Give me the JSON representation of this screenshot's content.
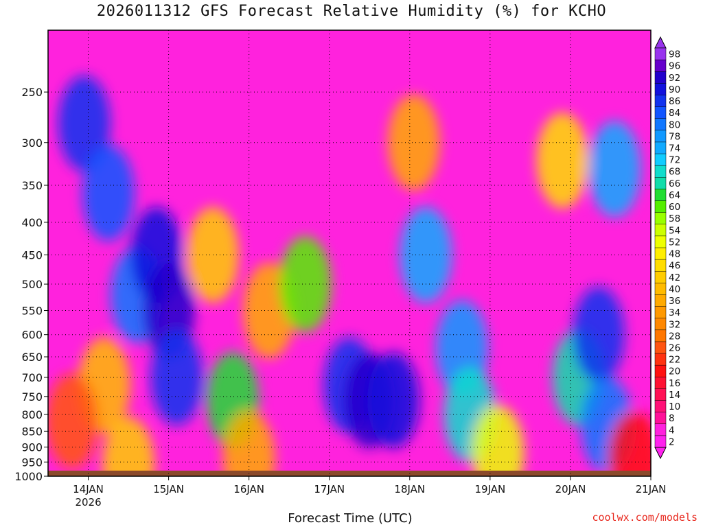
{
  "chart_data": {
    "type": "heatmap",
    "title": "2026011312 GFS Forecast Relative Humidity (%) for KCHO",
    "xlabel": "Forecast Time (UTC)",
    "ylabel": "",
    "x_ticks": [
      {
        "label": "14JAN",
        "sub": "2026",
        "day": 1
      },
      {
        "label": "15JAN",
        "sub": "",
        "day": 2
      },
      {
        "label": "16JAN",
        "sub": "",
        "day": 3
      },
      {
        "label": "17JAN",
        "sub": "",
        "day": 4
      },
      {
        "label": "18JAN",
        "sub": "",
        "day": 5
      },
      {
        "label": "19JAN",
        "sub": "",
        "day": 6
      },
      {
        "label": "20JAN",
        "sub": "",
        "day": 7
      },
      {
        "label": "21JAN",
        "sub": "",
        "day": 8
      }
    ],
    "xlim_days": [
      0.5,
      8.0
    ],
    "y_ticks": [
      250,
      300,
      350,
      400,
      450,
      500,
      550,
      600,
      650,
      700,
      750,
      800,
      850,
      900,
      950,
      1000
    ],
    "ylim_hpa": [
      200,
      1000
    ],
    "y_scale": "log-pressure",
    "grid": true,
    "colorbar": {
      "labels": [
        "2",
        "4",
        "8",
        "10",
        "14",
        "16",
        "20",
        "22",
        "26",
        "28",
        "32",
        "34",
        "36",
        "40",
        "42",
        "46",
        "48",
        "52",
        "54",
        "58",
        "60",
        "64",
        "66",
        "68",
        "72",
        "74",
        "78",
        "80",
        "84",
        "86",
        "90",
        "92",
        "96",
        "98"
      ],
      "colors": [
        "#ff22ee",
        "#ff22dd",
        "#ff1199",
        "#ff1177",
        "#ff1155",
        "#ff1133",
        "#ff1111",
        "#ff3311",
        "#ff5511",
        "#ff7700",
        "#ff8800",
        "#ff9900",
        "#ffaa00",
        "#ffbb00",
        "#ffcc00",
        "#ffdd00",
        "#ffee00",
        "#eeff00",
        "#ccff00",
        "#99ff00",
        "#55ee00",
        "#22dd33",
        "#11ddaa",
        "#11ddcc",
        "#11ccff",
        "#11aaff",
        "#1199ff",
        "#1177ff",
        "#1155ff",
        "#1133ee",
        "#1111dd",
        "#2200cc",
        "#6600cc",
        "#9933ee"
      ]
    },
    "series": [
      {
        "name": "",
        "points": [
          {
            "day": 0.95,
            "hpa": 280,
            "rh": 88
          },
          {
            "day": 1.25,
            "hpa": 360,
            "rh": 84
          },
          {
            "day": 1.6,
            "hpa": 520,
            "rh": 82
          },
          {
            "day": 1.85,
            "hpa": 450,
            "rh": 90
          },
          {
            "day": 2.0,
            "hpa": 550,
            "rh": 92
          },
          {
            "day": 2.1,
            "hpa": 700,
            "rh": 88
          },
          {
            "day": 1.2,
            "hpa": 720,
            "rh": 40
          },
          {
            "day": 0.8,
            "hpa": 820,
            "rh": 26
          },
          {
            "day": 2.55,
            "hpa": 450,
            "rh": 42
          },
          {
            "day": 2.8,
            "hpa": 760,
            "rh": 64
          },
          {
            "day": 3.25,
            "hpa": 550,
            "rh": 36
          },
          {
            "day": 3.7,
            "hpa": 500,
            "rh": 62
          },
          {
            "day": 4.25,
            "hpa": 720,
            "rh": 86
          },
          {
            "day": 4.5,
            "hpa": 760,
            "rh": 92
          },
          {
            "day": 4.8,
            "hpa": 760,
            "rh": 90
          },
          {
            "day": 5.2,
            "hpa": 450,
            "rh": 74
          },
          {
            "day": 5.65,
            "hpa": 630,
            "rh": 78
          },
          {
            "day": 5.75,
            "hpa": 800,
            "rh": 70
          },
          {
            "day": 5.05,
            "hpa": 300,
            "rh": 38
          },
          {
            "day": 6.9,
            "hpa": 320,
            "rh": 46
          },
          {
            "day": 7.1,
            "hpa": 700,
            "rh": 66
          },
          {
            "day": 7.35,
            "hpa": 600,
            "rh": 86
          },
          {
            "day": 7.55,
            "hpa": 330,
            "rh": 76
          },
          {
            "day": 7.45,
            "hpa": 830,
            "rh": 80
          },
          {
            "day": 6.1,
            "hpa": 920,
            "rh": 52
          },
          {
            "day": 3.0,
            "hpa": 940,
            "rh": 36
          },
          {
            "day": 1.5,
            "hpa": 960,
            "rh": 42
          },
          {
            "day": 7.8,
            "hpa": 940,
            "rh": 20
          }
        ]
      }
    ],
    "ground": {
      "label": "",
      "hpa_surface": 980
    }
  },
  "credit": "coolwx.com/models",
  "colors": {
    "background": "#ff22dd",
    "ground": "#8b4a2b",
    "credit": "#e8281e"
  }
}
